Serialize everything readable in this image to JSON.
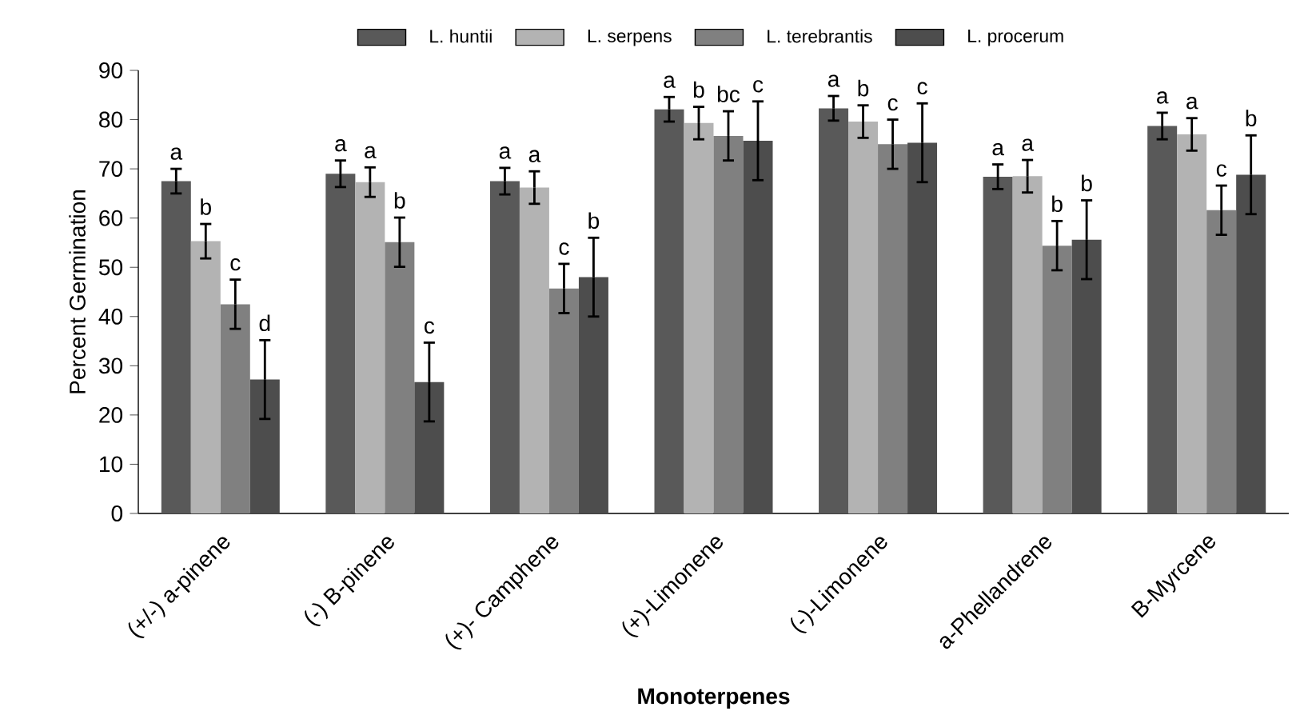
{
  "chart_data": {
    "type": "bar",
    "xlabel": "Monoterpenes",
    "ylabel": "Percent Germination",
    "categories": [
      "(+/-) a-pinene",
      "(-) B-pinene",
      "(+)- Camphene",
      "(+)-Limonene",
      "(-)-Limonene",
      "a-Phellandrene",
      "B-Myrcene"
    ],
    "series": [
      {
        "name": "L. huntii",
        "color": "#595959",
        "values": [
          67.5,
          69,
          67.5,
          82.1,
          82.3,
          68.4,
          78.7
        ],
        "errors": [
          2.5,
          2.7,
          2.7,
          2.5,
          2.5,
          2.5,
          2.7
        ],
        "value_labels": [
          "a",
          "a",
          "a",
          "a",
          "a",
          "a",
          "a"
        ]
      },
      {
        "name": "L. serpens",
        "color": "#b3b3b3",
        "values": [
          55.3,
          67.3,
          66.2,
          79.3,
          79.6,
          68.5,
          77
        ],
        "errors": [
          3.5,
          3,
          3.3,
          3.3,
          3.3,
          3.3,
          3.3
        ],
        "value_labels": [
          "b",
          "a",
          "a",
          "b",
          "b",
          "a",
          "a"
        ]
      },
      {
        "name": "L. terebrantis",
        "color": "#808080",
        "values": [
          42.5,
          55.1,
          45.7,
          76.7,
          75,
          54.4,
          61.6
        ],
        "errors": [
          5,
          5,
          5,
          5,
          5,
          5,
          5
        ],
        "value_labels": [
          "c",
          "b",
          "c",
          "bc",
          "c",
          "b",
          "c"
        ]
      },
      {
        "name": "L. procerum",
        "color": "#4d4d4d",
        "values": [
          27.2,
          26.7,
          48,
          75.7,
          75.3,
          55.6,
          68.8
        ],
        "errors": [
          8,
          8,
          8,
          8,
          8,
          8,
          8
        ],
        "value_labels": [
          "d",
          "c",
          "b",
          "c",
          "c",
          "b",
          "b"
        ]
      }
    ],
    "ylim": [
      0,
      90
    ],
    "yticks": [
      0,
      10,
      20,
      30,
      40,
      50,
      60,
      70,
      80,
      90
    ],
    "grid": false,
    "legend": "top"
  }
}
